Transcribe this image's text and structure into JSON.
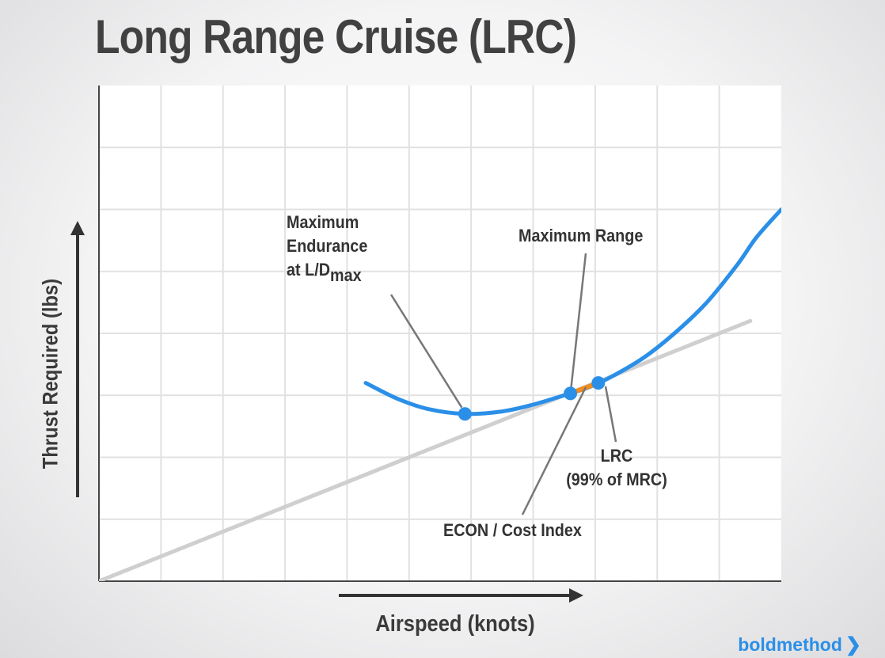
{
  "title": "Long Range Cruise (LRC)",
  "y_axis_label": "Thrust Required (lbs)",
  "x_axis_label": "Airspeed (knots)",
  "brand": "boldmethod",
  "annotations": {
    "max_endurance_line1": "Maximum",
    "max_endurance_line2": "Endurance",
    "max_endurance_line3": "at L/D",
    "max_endurance_sub": "max",
    "max_range": "Maximum Range",
    "lrc_line1": "LRC",
    "lrc_line2": "(99% of MRC)",
    "econ": "ECON / Cost Index"
  },
  "colors": {
    "curve": "#2b8fe8",
    "econ_segment": "#f28c1e",
    "tangent": "#cfcfcf",
    "grid": "#e1e1e1",
    "axis": "#444444",
    "leader": "#777777"
  },
  "chart_data": {
    "type": "line",
    "x_range": [
      0,
      11
    ],
    "y_range": [
      0,
      8
    ],
    "grid": true,
    "series": [
      {
        "role": "thrust-required curve",
        "x": [
          4.3,
          4.8,
          5.3,
          5.9,
          6.5,
          7.0,
          7.5,
          7.9,
          8.3,
          8.8,
          9.3,
          9.8,
          10.3,
          10.6,
          11.0
        ],
        "y": [
          3.2,
          2.95,
          2.78,
          2.7,
          2.74,
          2.85,
          3.0,
          3.13,
          3.32,
          3.62,
          4.02,
          4.5,
          5.12,
          5.55,
          6.0
        ]
      },
      {
        "role": "tangent line",
        "x": [
          0,
          10.5
        ],
        "y": [
          0,
          4.2
        ]
      }
    ],
    "points": [
      {
        "x": 5.9,
        "y": 2.7
      },
      {
        "x": 7.6,
        "y": 3.03
      },
      {
        "x": 8.05,
        "y": 3.2
      }
    ]
  }
}
